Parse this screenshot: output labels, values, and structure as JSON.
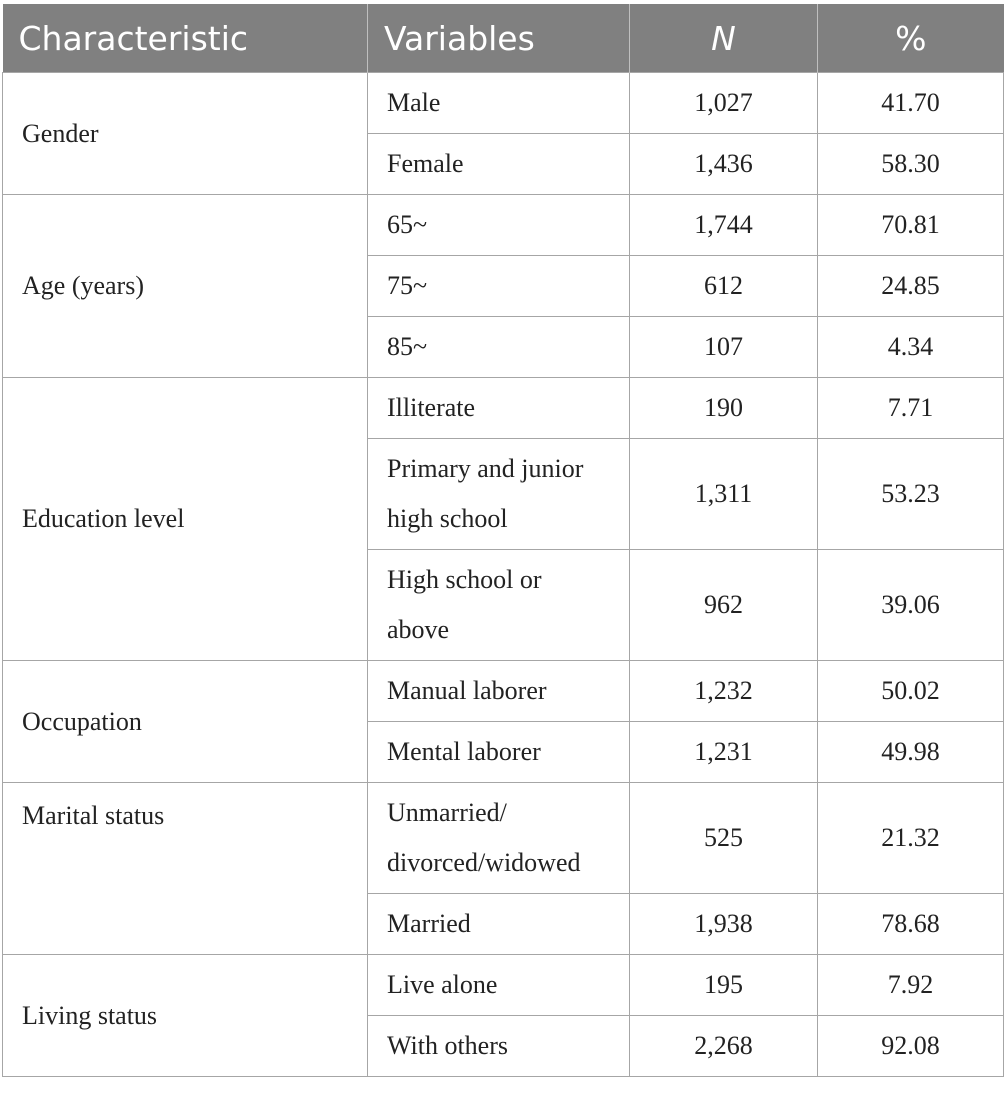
{
  "header": {
    "characteristic": "Characteristic",
    "variables": "Variables",
    "n": "N",
    "percent": "%"
  },
  "groups": [
    {
      "name": "Gender",
      "rows": [
        {
          "variable": "Male",
          "n": "1,027",
          "pct": "41.70"
        },
        {
          "variable": "Female",
          "n": "1,436",
          "pct": "58.30"
        }
      ]
    },
    {
      "name": "Age (years)",
      "rows": [
        {
          "variable": "65~",
          "n": "1,744",
          "pct": "70.81"
        },
        {
          "variable": "75~",
          "n": "612",
          "pct": "24.85"
        },
        {
          "variable": "85~",
          "n": "107",
          "pct": "4.34"
        }
      ]
    },
    {
      "name": "Education level",
      "rows": [
        {
          "variable": "Illiterate",
          "n": "190",
          "pct": "7.71"
        },
        {
          "variable": "Primary and junior high school",
          "n": "1,311",
          "pct": "53.23"
        },
        {
          "variable": "High school or above",
          "n": "962",
          "pct": "39.06"
        }
      ]
    },
    {
      "name": "Occupation",
      "rows": [
        {
          "variable": "Manual laborer",
          "n": "1,232",
          "pct": "50.02"
        },
        {
          "variable": "Mental laborer",
          "n": "1,231",
          "pct": "49.98"
        }
      ]
    },
    {
      "name": "Marital status",
      "rows": [
        {
          "variable": "Unmarried/ divorced/widowed",
          "n": "525",
          "pct": "21.32"
        },
        {
          "variable": "Married",
          "n": "1,938",
          "pct": "78.68"
        }
      ]
    },
    {
      "name": "Living status",
      "rows": [
        {
          "variable": "Live alone",
          "n": "195",
          "pct": "7.92"
        },
        {
          "variable": "With others",
          "n": "2,268",
          "pct": "92.08"
        }
      ]
    }
  ]
}
